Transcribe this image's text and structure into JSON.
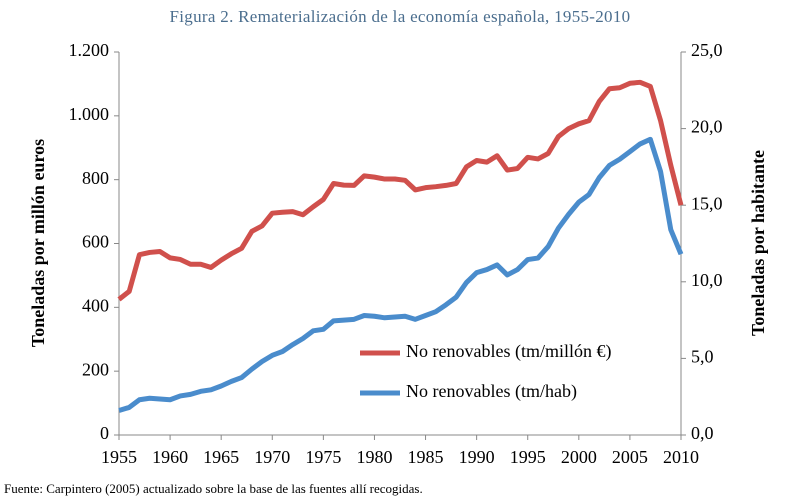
{
  "chart_data": {
    "type": "line",
    "title": "Figura 2. Rematerialización de la economía española, 1955-2010",
    "y_label": "Toneladas por millón euros",
    "y2_label": "Toneladas por habitante",
    "source": "Fuente: Carpintero (2005) actualizado sobre la base de las fuentes allí recogidas.",
    "x": [
      1955,
      1956,
      1957,
      1958,
      1959,
      1960,
      1961,
      1962,
      1963,
      1964,
      1965,
      1966,
      1967,
      1968,
      1969,
      1970,
      1971,
      1972,
      1973,
      1974,
      1975,
      1976,
      1977,
      1978,
      1979,
      1980,
      1981,
      1982,
      1983,
      1984,
      1985,
      1986,
      1987,
      1988,
      1989,
      1990,
      1991,
      1992,
      1993,
      1994,
      1995,
      1996,
      1997,
      1998,
      1999,
      2000,
      2001,
      2002,
      2003,
      2004,
      2005,
      2006,
      2007,
      2008,
      2009,
      2010
    ],
    "xlim": [
      1955,
      2010
    ],
    "xticks": [
      1955,
      1960,
      1965,
      1970,
      1975,
      1980,
      1985,
      1990,
      1995,
      2000,
      2005,
      2010
    ],
    "ylim": [
      0,
      1200
    ],
    "yticks": [
      0,
      200,
      400,
      600,
      800,
      {
        "value": 1000,
        "label": "1.000"
      },
      {
        "value": 1200,
        "label": "1.200"
      }
    ],
    "y2lim": [
      0,
      25
    ],
    "y2ticks": [
      {
        "value": 0,
        "label": "0,0"
      },
      {
        "value": 5,
        "label": "5,0"
      },
      {
        "value": 10,
        "label": "10,0"
      },
      {
        "value": 15,
        "label": "15,0"
      },
      {
        "value": 20,
        "label": "20,0"
      },
      {
        "value": 25,
        "label": "25,0"
      }
    ],
    "legend": "lower-center",
    "series": [
      {
        "name": "No renovables (tm/millón €)",
        "color": "#d0504c",
        "values": [
          425,
          450,
          565,
          572,
          575,
          555,
          550,
          535,
          535,
          525,
          548,
          568,
          585,
          638,
          655,
          695,
          698,
          700,
          690,
          715,
          738,
          788,
          783,
          782,
          812,
          808,
          802,
          802,
          798,
          768,
          775,
          778,
          782,
          788,
          840,
          860,
          855,
          875,
          830,
          835,
          870,
          865,
          882,
          935,
          960,
          975,
          985,
          1045,
          1085,
          1088,
          1102,
          1105,
          1092,
          985,
          845,
          720
        ]
      },
      {
        "name": "No renovables (tm/hab)",
        "color": "#4a8ccc",
        "axis": "y2",
        "values": [
          1.6,
          1.8,
          2.3,
          2.4,
          2.35,
          2.3,
          2.55,
          2.65,
          2.85,
          2.95,
          3.2,
          3.5,
          3.75,
          4.3,
          4.8,
          5.2,
          5.45,
          5.9,
          6.3,
          6.8,
          6.9,
          7.45,
          7.5,
          7.55,
          7.8,
          7.75,
          7.65,
          7.7,
          7.75,
          7.55,
          7.8,
          8.05,
          8.5,
          9.0,
          9.95,
          10.6,
          10.8,
          11.1,
          10.45,
          10.8,
          11.45,
          11.55,
          12.3,
          13.5,
          14.4,
          15.2,
          15.7,
          16.8,
          17.6,
          18.0,
          18.5,
          19.0,
          19.3,
          17.2,
          13.4,
          11.8
        ]
      }
    ]
  }
}
